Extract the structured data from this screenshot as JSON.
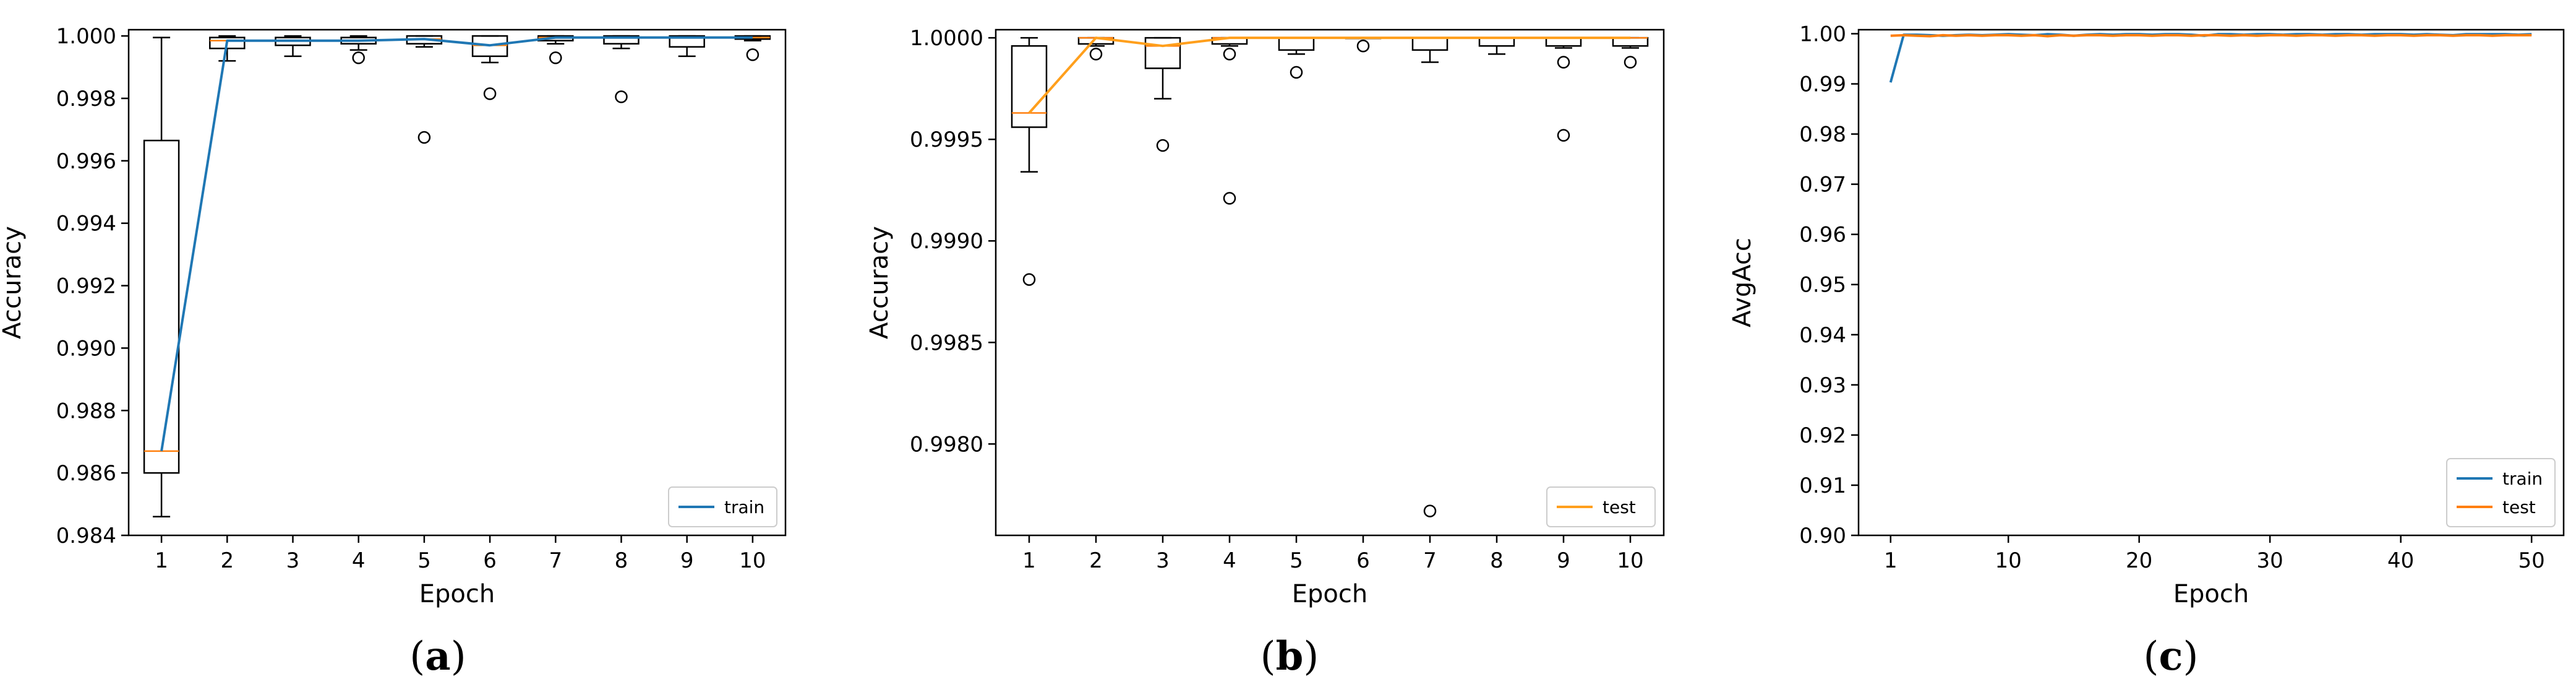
{
  "colors": {
    "train": "#1f77b4",
    "test": "#ff9f1c",
    "median": "#ff7f0e",
    "box": "#000000"
  },
  "chart_data": [
    {
      "type": "box+line",
      "panel": "a",
      "caption_letter": "a",
      "title": "",
      "xlabel": "Epoch",
      "ylabel": "Accuracy",
      "xlim": [
        0.5,
        10.5
      ],
      "ylim": [
        0.984,
        1.0002
      ],
      "xticks": [
        1,
        2,
        3,
        4,
        5,
        6,
        7,
        8,
        9,
        10
      ],
      "yticks": [
        0.984,
        0.986,
        0.988,
        0.99,
        0.992,
        0.994,
        0.996,
        0.998,
        1.0
      ],
      "yticklabels": [
        "0.984",
        "0.986",
        "0.988",
        "0.990",
        "0.992",
        "0.994",
        "0.996",
        "0.998",
        "1.000"
      ],
      "boxes": [
        {
          "x": 1,
          "q1": 0.986,
          "median": 0.9867,
          "q3": 0.99665,
          "whislo": 0.9846,
          "whishi": 0.99995,
          "fliers": []
        },
        {
          "x": 2,
          "q1": 0.9996,
          "median": 0.99985,
          "q3": 0.99995,
          "whislo": 0.9992,
          "whishi": 1.0,
          "fliers": []
        },
        {
          "x": 3,
          "q1": 0.9997,
          "median": 0.99985,
          "q3": 0.99995,
          "whislo": 0.99935,
          "whishi": 1.0,
          "fliers": []
        },
        {
          "x": 4,
          "q1": 0.99975,
          "median": 0.99985,
          "q3": 0.99995,
          "whislo": 0.99955,
          "whishi": 1.0,
          "fliers": [
            0.9993
          ]
        },
        {
          "x": 5,
          "q1": 0.99975,
          "median": 0.9999,
          "q3": 1.0,
          "whislo": 0.99965,
          "whishi": 1.0,
          "fliers": [
            0.99675
          ]
        },
        {
          "x": 6,
          "q1": 0.99935,
          "median": 0.9997,
          "q3": 1.0,
          "whislo": 0.99915,
          "whishi": 1.0,
          "fliers": [
            0.99815
          ]
        },
        {
          "x": 7,
          "q1": 0.99985,
          "median": 0.99995,
          "q3": 1.0,
          "whislo": 0.99975,
          "whishi": 1.0,
          "fliers": [
            0.9993
          ]
        },
        {
          "x": 8,
          "q1": 0.99975,
          "median": 0.99995,
          "q3": 1.0,
          "whislo": 0.9996,
          "whishi": 1.0,
          "fliers": [
            0.99805
          ]
        },
        {
          "x": 9,
          "q1": 0.99965,
          "median": 0.99995,
          "q3": 1.0,
          "whislo": 0.99935,
          "whishi": 1.0,
          "fliers": []
        },
        {
          "x": 10,
          "q1": 0.9999,
          "median": 0.99995,
          "q3": 1.0,
          "whislo": 0.99985,
          "whishi": 1.0,
          "fliers": [
            0.9994
          ]
        }
      ],
      "series": [
        {
          "name": "train",
          "color_key": "train",
          "x": [
            1,
            2,
            3,
            4,
            5,
            6,
            7,
            8,
            9,
            10
          ],
          "values": [
            0.9867,
            0.99985,
            0.99985,
            0.99985,
            0.9999,
            0.9997,
            0.99995,
            0.99995,
            0.99995,
            0.99995
          ]
        }
      ],
      "legend": {
        "entries": [
          "train"
        ],
        "loc": "lower right"
      }
    },
    {
      "type": "box+line",
      "panel": "b",
      "caption_letter": "b",
      "title": "",
      "xlabel": "Epoch",
      "ylabel": "Accuracy",
      "xlim": [
        0.5,
        10.5
      ],
      "ylim": [
        0.99755,
        1.00004
      ],
      "xticks": [
        1,
        2,
        3,
        4,
        5,
        6,
        7,
        8,
        9,
        10
      ],
      "yticks": [
        0.998,
        0.9985,
        0.999,
        0.9995,
        1.0
      ],
      "yticklabels": [
        "0.9980",
        "0.9985",
        "0.9990",
        "0.9995",
        "1.0000"
      ],
      "boxes": [
        {
          "x": 1,
          "q1": 0.99956,
          "median": 0.99963,
          "q3": 0.99996,
          "whislo": 0.99934,
          "whishi": 1.0,
          "fliers": [
            0.99881
          ]
        },
        {
          "x": 2,
          "q1": 0.99997,
          "median": 1.0,
          "q3": 1.0,
          "whislo": 0.99996,
          "whishi": 1.0,
          "fliers": [
            0.99992
          ]
        },
        {
          "x": 3,
          "q1": 0.99985,
          "median": 0.99996,
          "q3": 1.0,
          "whislo": 0.9997,
          "whishi": 1.0,
          "fliers": [
            0.99947
          ]
        },
        {
          "x": 4,
          "q1": 0.99997,
          "median": 1.0,
          "q3": 1.0,
          "whislo": 0.99996,
          "whishi": 1.0,
          "fliers": [
            0.99992,
            0.99921
          ]
        },
        {
          "x": 5,
          "q1": 0.99994,
          "median": 1.0,
          "q3": 1.0,
          "whislo": 0.99992,
          "whishi": 1.0,
          "fliers": [
            0.99983
          ]
        },
        {
          "x": 6,
          "q1": 1.0,
          "median": 1.0,
          "q3": 1.0,
          "whislo": 1.0,
          "whishi": 1.0,
          "fliers": [
            0.99996
          ]
        },
        {
          "x": 7,
          "q1": 0.99994,
          "median": 1.0,
          "q3": 1.0,
          "whislo": 0.99988,
          "whishi": 1.0,
          "fliers": [
            0.99767
          ]
        },
        {
          "x": 8,
          "q1": 0.99996,
          "median": 1.0,
          "q3": 1.0,
          "whislo": 0.99992,
          "whishi": 1.0,
          "fliers": []
        },
        {
          "x": 9,
          "q1": 0.99996,
          "median": 1.0,
          "q3": 1.0,
          "whislo": 0.99995,
          "whishi": 1.0,
          "fliers": [
            0.99988,
            0.99952
          ]
        },
        {
          "x": 10,
          "q1": 0.99996,
          "median": 1.0,
          "q3": 1.0,
          "whislo": 0.99995,
          "whishi": 1.0,
          "fliers": [
            0.99988
          ]
        }
      ],
      "series": [
        {
          "name": "test",
          "color_key": "test",
          "x": [
            1,
            2,
            3,
            4,
            5,
            6,
            7,
            8,
            9,
            10
          ],
          "values": [
            0.99963,
            1.0,
            0.99996,
            1.0,
            1.0,
            1.0,
            1.0,
            1.0,
            1.0,
            1.0
          ]
        }
      ],
      "legend": {
        "entries": [
          "test"
        ],
        "loc": "lower right"
      }
    },
    {
      "type": "line",
      "panel": "c",
      "caption_letter": "c",
      "title": "",
      "xlabel": "Epoch",
      "ylabel": "AvgAcc",
      "xlim": [
        -1.45,
        52.45
      ],
      "ylim": [
        0.9,
        1.0008
      ],
      "xticks": [
        1,
        10,
        20,
        30,
        40,
        50
      ],
      "yticks": [
        0.9,
        0.91,
        0.92,
        0.93,
        0.94,
        0.95,
        0.96,
        0.97,
        0.98,
        0.99,
        1.0
      ],
      "yticklabels": [
        "0.90",
        "0.91",
        "0.92",
        "0.93",
        "0.94",
        "0.95",
        "0.96",
        "0.97",
        "0.98",
        "0.99",
        "1.00"
      ],
      "boxes": [],
      "series": [
        {
          "name": "train",
          "color_key": "train",
          "x": [
            1,
            2,
            3,
            4,
            5,
            6,
            7,
            8,
            9,
            10,
            11,
            12,
            13,
            14,
            15,
            16,
            17,
            18,
            19,
            20,
            21,
            22,
            23,
            24,
            25,
            26,
            27,
            28,
            29,
            30,
            31,
            32,
            33,
            34,
            35,
            36,
            37,
            38,
            39,
            40,
            41,
            42,
            43,
            44,
            45,
            46,
            47,
            48,
            49,
            50
          ],
          "values": [
            0.9903,
            0.9998,
            0.9998,
            0.9997,
            0.9996,
            0.9997,
            0.9998,
            0.9997,
            0.9998,
            0.9999,
            0.9998,
            0.9997,
            0.9999,
            0.9998,
            0.9996,
            0.9998,
            0.9999,
            0.9998,
            0.9999,
            0.9999,
            0.9998,
            0.9999,
            0.9999,
            0.9998,
            0.9996,
            0.9999,
            0.9999,
            0.9998,
            0.9999,
            0.9999,
            0.9998,
            0.9999,
            0.9999,
            0.9998,
            0.9999,
            0.9999,
            0.9998,
            0.9999,
            0.9999,
            0.9999,
            0.9998,
            0.9999,
            0.9998,
            0.9997,
            0.9999,
            0.9999,
            0.9999,
            0.9999,
            0.9998,
            0.9999
          ]
        },
        {
          "name": "test",
          "color_key": "median",
          "x": [
            1,
            2,
            3,
            4,
            5,
            6,
            7,
            8,
            9,
            10,
            11,
            12,
            13,
            14,
            15,
            16,
            17,
            18,
            19,
            20,
            21,
            22,
            23,
            24,
            25,
            26,
            27,
            28,
            29,
            30,
            31,
            32,
            33,
            34,
            35,
            36,
            37,
            38,
            39,
            40,
            41,
            42,
            43,
            44,
            45,
            46,
            47,
            48,
            49,
            50
          ],
          "values": [
            0.9996,
            0.9997,
            0.9996,
            0.9995,
            0.9997,
            0.9996,
            0.9997,
            0.9996,
            0.9997,
            0.9997,
            0.9996,
            0.9997,
            0.9995,
            0.9997,
            0.9996,
            0.9997,
            0.9997,
            0.9996,
            0.9997,
            0.9997,
            0.9996,
            0.9997,
            0.9997,
            0.9996,
            0.9997,
            0.9997,
            0.9996,
            0.9997,
            0.9996,
            0.9997,
            0.9997,
            0.9996,
            0.9997,
            0.9997,
            0.9996,
            0.9997,
            0.9997,
            0.9996,
            0.9997,
            0.9997,
            0.9996,
            0.9997,
            0.9997,
            0.9996,
            0.9997,
            0.9997,
            0.9996,
            0.9997,
            0.9997,
            0.9997
          ]
        }
      ],
      "legend": {
        "entries": [
          "train",
          "test"
        ],
        "loc": "lower right"
      }
    }
  ]
}
